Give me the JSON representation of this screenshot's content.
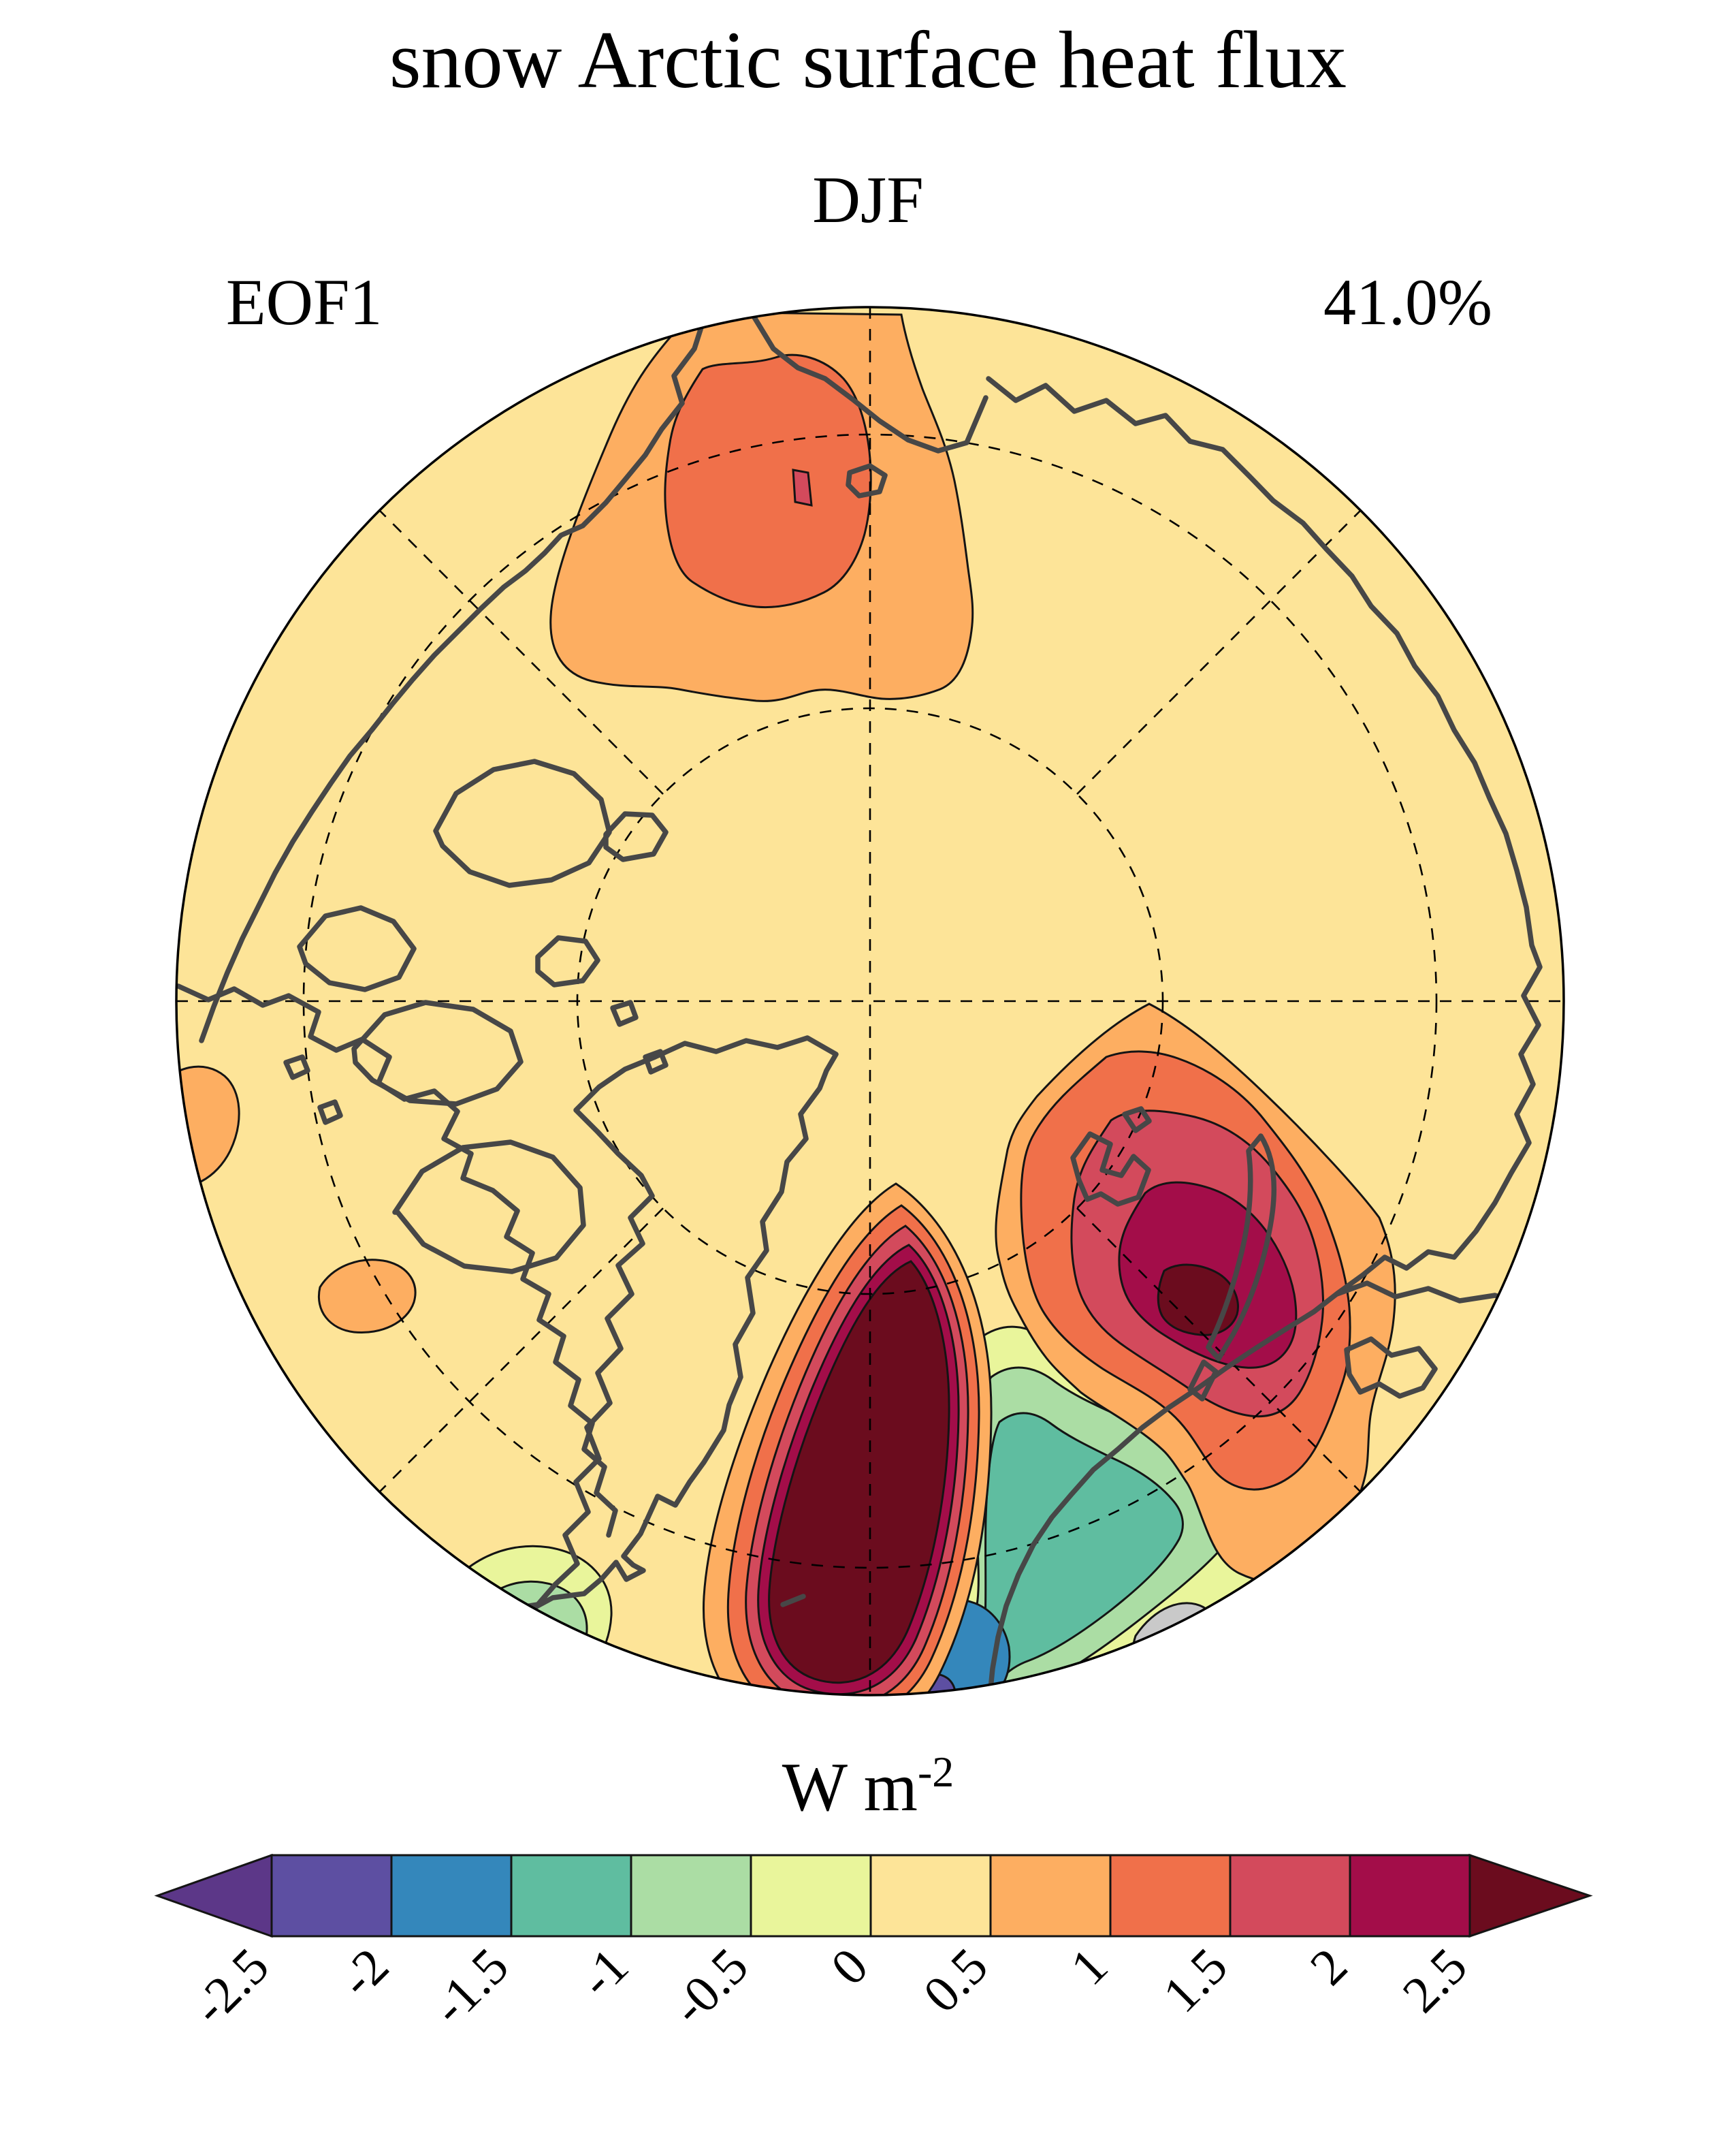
{
  "header": {
    "title": "snow Arctic surface heat flux",
    "season": "DJF",
    "eof_label": "EOF1",
    "variance": "41.0%"
  },
  "colorbar": {
    "unit_main": "W m",
    "unit_exponent": "-2",
    "tick_labels": [
      "-2.5",
      "-2",
      "-1.5",
      "-1",
      "-0.5",
      "0",
      "0.5",
      "1",
      "1.5",
      "2",
      "2.5"
    ],
    "extend": "both",
    "segment_keys": [
      "neg_25_20",
      "neg_20_15",
      "neg_15_10",
      "neg_10_05",
      "neg_05_00",
      "pos_00_05",
      "pos_05_10",
      "pos_10_15",
      "pos_15_20",
      "pos_20_25"
    ]
  },
  "palette": {
    "under": "#5c3788",
    "neg_25_20": "#5d4fa2",
    "neg_20_15": "#3487bb",
    "neg_15_10": "#5fbda0",
    "neg_10_05": "#abdda4",
    "neg_05_00": "#e9f59b",
    "pos_00_05": "#fde498",
    "pos_05_10": "#fdae61",
    "pos_10_15": "#f0704a",
    "pos_15_20": "#d34a5c",
    "pos_20_25": "#a30d49",
    "over": "#6b0c1e",
    "masked": "#c9c9c9",
    "coastline": "#474747",
    "contour": "#141414",
    "graticule": "#000000",
    "map_edge": "#000000"
  },
  "chart_data": {
    "type": "filled_contour_map",
    "title": "snow Arctic surface heat flux",
    "season": "DJF",
    "eof_mode": "EOF1",
    "variance_explained_percent": 41.0,
    "units": "W m^-2",
    "projection": "North Polar Stereographic (Arctic polar cap, circular boundary)",
    "contour_levels": [
      -2.5,
      -2,
      -1.5,
      -1,
      -0.5,
      0,
      0.5,
      1,
      1.5,
      2,
      2.5
    ],
    "colorbar": {
      "orientation": "horizontal",
      "position": "bottom",
      "extend": "both",
      "tick_labels": [
        "-2.5",
        "-2",
        "-1.5",
        "-1",
        "-0.5",
        "0",
        "0.5",
        "1",
        "1.5",
        "2",
        "2.5"
      ],
      "tick_label_rotation_deg": 45
    },
    "graticule": {
      "style": "dashed",
      "latitude_circles": 2,
      "meridian_interval_deg": 45
    },
    "background_band": "0 to +0.5 (pale yellow over most of the Arctic)",
    "anomaly_features": [
      {
        "name": "Bering Strait / Chukchi positive anomaly",
        "location": "top center of map",
        "bands": [
          "+0.5 to +1 outer",
          "+1 to +1.5 inner",
          "small +1.5 to +2 sliver core"
        ]
      },
      {
        "name": "Greenland / Norwegian Sea strong positive anomaly",
        "location": "lower center, southeast of Greenland",
        "bands": [
          "concentric thin rings +0.5 up to > +2.5",
          "large dark maroon core > +2.5"
        ]
      },
      {
        "name": "Barents / Kara Seas positive anomaly",
        "location": "lower right around Novaya Zemlya and Svalbard",
        "bands": [
          "+0.5 to +1 outer",
          "+1 to +1.5",
          "+1.5 to +2",
          "+2 to +2.5",
          "small core > +2.5"
        ]
      },
      {
        "name": "Scandinavia / Norwegian coast negative anomaly",
        "location": "bottom, right of the maroon blob",
        "bands": [
          "-0.5 to 0 outer",
          "-1 to -0.5",
          "-1.5 to -1 teal",
          "-2 to -1.5 blue at bottom edge",
          "tiny -2.5 to -2 purple sliver"
        ]
      },
      {
        "name": "Labrador Sea weak negative patch",
        "location": "bottom left edge",
        "bands": [
          "-0.5 to 0",
          "-1 to -0.5",
          "small -1.5 to -1 teal sliver"
        ]
      },
      {
        "name": "Hudson Bay weak positive spot",
        "location": "lower left interior",
        "bands": [
          "+0.5 to +1"
        ]
      },
      {
        "name": "Left-edge weak positive wedge",
        "location": "left map edge",
        "bands": [
          "+0.5 to +1"
        ]
      },
      {
        "name": "masked / no-data wedge",
        "location": "bottom right edge",
        "bands": [
          "gray"
        ]
      }
    ]
  }
}
